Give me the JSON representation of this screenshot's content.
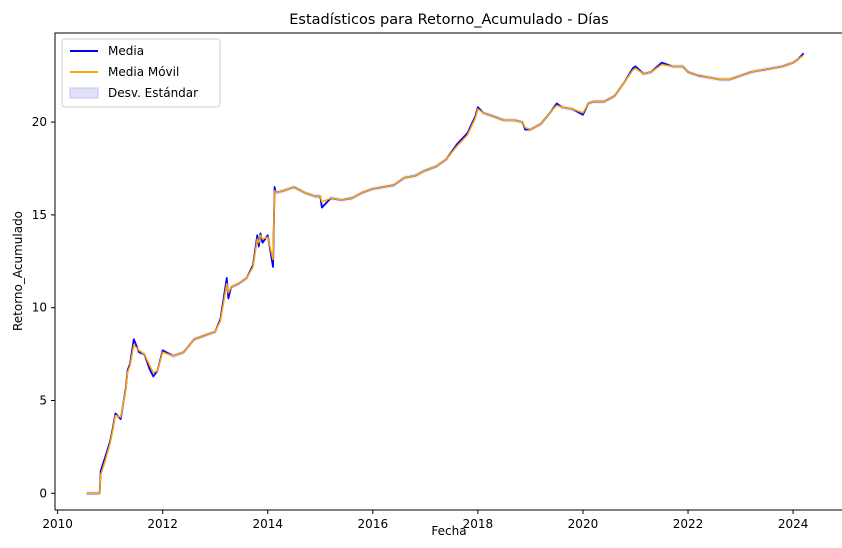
{
  "chart_data": {
    "type": "line",
    "title": "Estadísticos para Retorno_Acumulado - Días",
    "xlabel": "Fecha",
    "ylabel": "Retorno_Acumulado",
    "x_ticks": [
      "2010",
      "2012",
      "2014",
      "2016",
      "2018",
      "2020",
      "2022",
      "2024"
    ],
    "y_ticks": [
      "0",
      "5",
      "10",
      "15",
      "20"
    ],
    "xlim": [
      2009.95,
      2024.95
    ],
    "ylim": [
      -0.9,
      24.8
    ],
    "grid": false,
    "legend_position": "top-left",
    "series": [
      {
        "name": "Media",
        "color": "#0000ff",
        "x": [
          2010.55,
          2010.8,
          2010.82,
          2010.9,
          2011.0,
          2011.05,
          2011.1,
          2011.2,
          2011.3,
          2011.33,
          2011.38,
          2011.45,
          2011.55,
          2011.65,
          2011.75,
          2011.82,
          2011.9,
          2012.0,
          2012.2,
          2012.4,
          2012.6,
          2012.8,
          2013.0,
          2013.1,
          2013.22,
          2013.25,
          2013.3,
          2013.45,
          2013.6,
          2013.72,
          2013.8,
          2013.83,
          2013.86,
          2013.9,
          2014.0,
          2014.1,
          2014.13,
          2014.15,
          2014.3,
          2014.5,
          2014.7,
          2014.9,
          2015.0,
          2015.03,
          2015.2,
          2015.4,
          2015.6,
          2015.8,
          2016.0,
          2016.2,
          2016.4,
          2016.6,
          2016.8,
          2017.0,
          2017.2,
          2017.4,
          2017.6,
          2017.8,
          2017.95,
          2018.0,
          2018.1,
          2018.3,
          2018.5,
          2018.7,
          2018.85,
          2018.9,
          2019.0,
          2019.2,
          2019.4,
          2019.5,
          2019.6,
          2019.8,
          2020.0,
          2020.1,
          2020.2,
          2020.4,
          2020.6,
          2020.8,
          2020.95,
          2021.0,
          2021.15,
          2021.3,
          2021.5,
          2021.7,
          2021.9,
          2022.0,
          2022.2,
          2022.4,
          2022.6,
          2022.8,
          2023.0,
          2023.2,
          2023.4,
          2023.6,
          2023.8,
          2024.0,
          2024.1,
          2024.2
        ],
        "y": [
          0,
          0,
          1.2,
          1.9,
          2.8,
          3.5,
          4.3,
          4.0,
          5.7,
          6.6,
          7.0,
          8.3,
          7.6,
          7.5,
          6.7,
          6.3,
          6.6,
          7.7,
          7.4,
          7.6,
          8.3,
          8.5,
          8.7,
          9.4,
          11.6,
          10.5,
          11.1,
          11.3,
          11.6,
          12.3,
          13.9,
          13.3,
          14.0,
          13.5,
          13.9,
          12.2,
          16.5,
          16.2,
          16.3,
          16.5,
          16.2,
          16.0,
          16.0,
          15.4,
          15.9,
          15.8,
          15.9,
          16.2,
          16.4,
          16.5,
          16.6,
          17.0,
          17.1,
          17.4,
          17.6,
          18.0,
          18.8,
          19.4,
          20.3,
          20.8,
          20.5,
          20.3,
          20.1,
          20.1,
          20.0,
          19.6,
          19.6,
          19.9,
          20.6,
          21.0,
          20.8,
          20.7,
          20.4,
          21.0,
          21.1,
          21.1,
          21.4,
          22.2,
          22.9,
          23.0,
          22.6,
          22.7,
          23.2,
          23.0,
          23.0,
          22.7,
          22.5,
          22.4,
          22.3,
          22.3,
          22.5,
          22.7,
          22.8,
          22.9,
          23.0,
          23.2,
          23.4,
          23.7
        ]
      },
      {
        "name": "Media Móvil",
        "color": "#ffa500",
        "x": [
          2010.55,
          2010.8,
          2010.82,
          2010.9,
          2011.0,
          2011.05,
          2011.1,
          2011.2,
          2011.3,
          2011.33,
          2011.38,
          2011.45,
          2011.55,
          2011.65,
          2011.75,
          2011.82,
          2011.9,
          2012.0,
          2012.2,
          2012.4,
          2012.6,
          2012.8,
          2013.0,
          2013.1,
          2013.22,
          2013.25,
          2013.3,
          2013.45,
          2013.6,
          2013.72,
          2013.8,
          2013.83,
          2013.86,
          2013.9,
          2014.0,
          2014.1,
          2014.13,
          2014.15,
          2014.3,
          2014.5,
          2014.7,
          2014.9,
          2015.0,
          2015.03,
          2015.2,
          2015.4,
          2015.6,
          2015.8,
          2016.0,
          2016.2,
          2016.4,
          2016.6,
          2016.8,
          2017.0,
          2017.2,
          2017.4,
          2017.6,
          2017.8,
          2017.95,
          2018.0,
          2018.1,
          2018.3,
          2018.5,
          2018.7,
          2018.85,
          2018.9,
          2019.0,
          2019.2,
          2019.4,
          2019.5,
          2019.6,
          2019.8,
          2020.0,
          2020.1,
          2020.2,
          2020.4,
          2020.6,
          2020.8,
          2020.95,
          2021.0,
          2021.15,
          2021.3,
          2021.5,
          2021.7,
          2021.9,
          2022.0,
          2022.2,
          2022.4,
          2022.6,
          2022.8,
          2023.0,
          2023.2,
          2023.4,
          2023.6,
          2023.8,
          2024.0,
          2024.1,
          2024.2
        ],
        "y": [
          0,
          0,
          1.0,
          1.7,
          2.7,
          3.4,
          4.2,
          4.1,
          5.6,
          6.5,
          6.9,
          8.0,
          7.7,
          7.5,
          6.9,
          6.5,
          6.6,
          7.6,
          7.4,
          7.6,
          8.3,
          8.5,
          8.7,
          9.3,
          11.3,
          10.8,
          11.1,
          11.3,
          11.6,
          12.2,
          13.7,
          13.5,
          13.9,
          13.7,
          13.8,
          12.6,
          16.3,
          16.2,
          16.3,
          16.5,
          16.2,
          16.0,
          16.0,
          15.7,
          15.9,
          15.8,
          15.9,
          16.2,
          16.4,
          16.5,
          16.6,
          17.0,
          17.1,
          17.4,
          17.6,
          18.0,
          18.7,
          19.3,
          20.2,
          20.7,
          20.5,
          20.3,
          20.1,
          20.1,
          20.0,
          19.7,
          19.6,
          19.9,
          20.6,
          20.9,
          20.8,
          20.7,
          20.5,
          21.0,
          21.1,
          21.1,
          21.4,
          22.2,
          22.8,
          22.9,
          22.6,
          22.7,
          23.1,
          23.0,
          23.0,
          22.7,
          22.5,
          22.4,
          22.3,
          22.3,
          22.5,
          22.7,
          22.8,
          22.9,
          23.0,
          23.2,
          23.4,
          23.6
        ]
      },
      {
        "name": "Desv. Estándar",
        "color": "#e0e0fb",
        "type": "band"
      }
    ]
  }
}
